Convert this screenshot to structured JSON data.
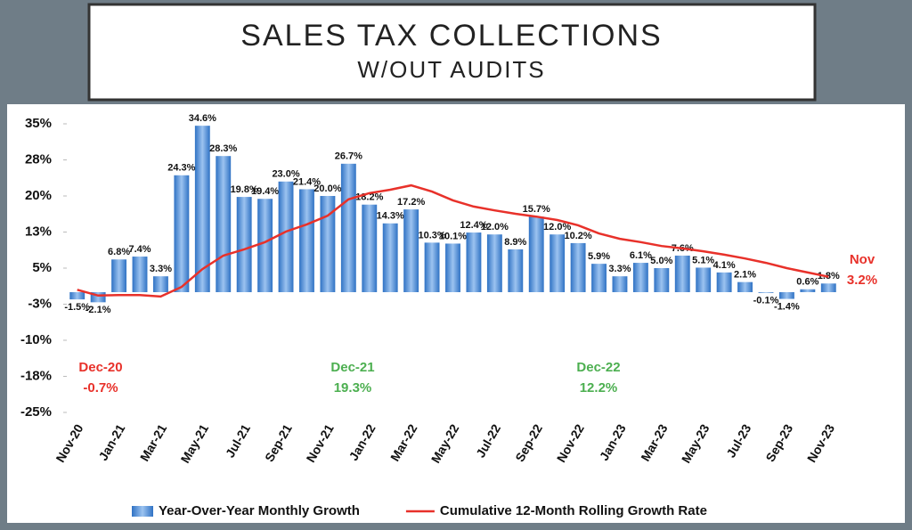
{
  "chart_data": {
    "type": "bar-line",
    "title": "SALES TAX COLLECTIONS",
    "subtitle": "W/OUT AUDITS",
    "categories": [
      "Nov-20",
      null,
      "Jan-21",
      null,
      "Mar-21",
      null,
      "May-21",
      null,
      "Jul-21",
      null,
      "Sep-21",
      null,
      "Nov-21",
      null,
      "Jan-22",
      null,
      "Mar-22",
      null,
      "May-22",
      null,
      "Jul-22",
      null,
      "Sep-22",
      null,
      "Nov-22",
      null,
      "Jan-23",
      null,
      "Mar-23",
      null,
      "May-23",
      null,
      "Jul-23",
      null,
      "Sep-23",
      null,
      "Nov-23"
    ],
    "series": [
      {
        "name": "Year-Over-Year Monthly Growth",
        "type": "bar",
        "color": "#2f72c4",
        "values": [
          -1.5,
          -2.1,
          6.8,
          7.4,
          3.3,
          24.3,
          34.6,
          28.3,
          19.8,
          19.4,
          23.0,
          21.4,
          20.0,
          26.7,
          18.2,
          14.3,
          17.2,
          10.3,
          10.1,
          12.4,
          12.0,
          8.9,
          15.7,
          12.0,
          10.2,
          5.9,
          3.3,
          6.1,
          5.0,
          7.6,
          5.1,
          4.1,
          2.1,
          -0.1,
          -1.4,
          0.6,
          1.8
        ],
        "value_labels": [
          "-1.5%",
          "-2.1%",
          "6.8%",
          "7.4%",
          "3.3%",
          "24.3%",
          "34.6%",
          "28.3%",
          "19.8%",
          "19.4%",
          "23.0%",
          "21.4%",
          "20.0%",
          "26.7%",
          "18.2%",
          "14.3%",
          "17.2%",
          "10.3%",
          "10.1%",
          "12.4%",
          "12.0%",
          "8.9%",
          "15.7%",
          "12.0%",
          "10.2%",
          "5.9%",
          "3.3%",
          "6.1%",
          "5.0%",
          "7.6%",
          "5.1%",
          "4.1%",
          "2.1%",
          "-0.1%",
          "-1.4%",
          "0.6%",
          "1.8%"
        ]
      },
      {
        "name": "Cumulative 12-Month Rolling Growth Rate",
        "type": "line",
        "color": "#e8312a",
        "values": [
          0.5,
          -0.7,
          -0.6,
          -0.6,
          -0.9,
          1.1,
          4.8,
          7.6,
          8.9,
          10.4,
          12.6,
          14.1,
          15.9,
          19.3,
          20.6,
          21.3,
          22.2,
          20.9,
          19.1,
          17.8,
          17.0,
          16.3,
          15.7,
          15.0,
          13.9,
          12.2,
          11.1,
          10.4,
          9.6,
          9.1,
          8.5,
          7.8,
          7.0,
          6.1,
          5.0,
          4.1,
          3.2
        ]
      }
    ],
    "ylim": [
      -25,
      35
    ],
    "yticks": [
      {
        "value": -25,
        "label": "-25%"
      },
      {
        "value": -17.5,
        "label": "-18%"
      },
      {
        "value": -10,
        "label": "-10%"
      },
      {
        "value": -2.5,
        "label": "-3%"
      },
      {
        "value": 5,
        "label": "5%"
      },
      {
        "value": 12.5,
        "label": "13%"
      },
      {
        "value": 20,
        "label": "20%"
      },
      {
        "value": 27.5,
        "label": "28%"
      },
      {
        "value": 35,
        "label": "35%"
      }
    ],
    "grid": false,
    "legend": "bottom",
    "annotations": [
      {
        "text": "Dec-20",
        "label": "-0.7%",
        "color": "#e8312a"
      },
      {
        "text": "Dec-21",
        "label": "19.3%",
        "color": "#4caf50"
      },
      {
        "text": "Dec-22",
        "label": "12.2%",
        "color": "#4caf50"
      },
      {
        "text": "Nov",
        "label": "3.2%",
        "color": "#e8312a"
      }
    ]
  }
}
